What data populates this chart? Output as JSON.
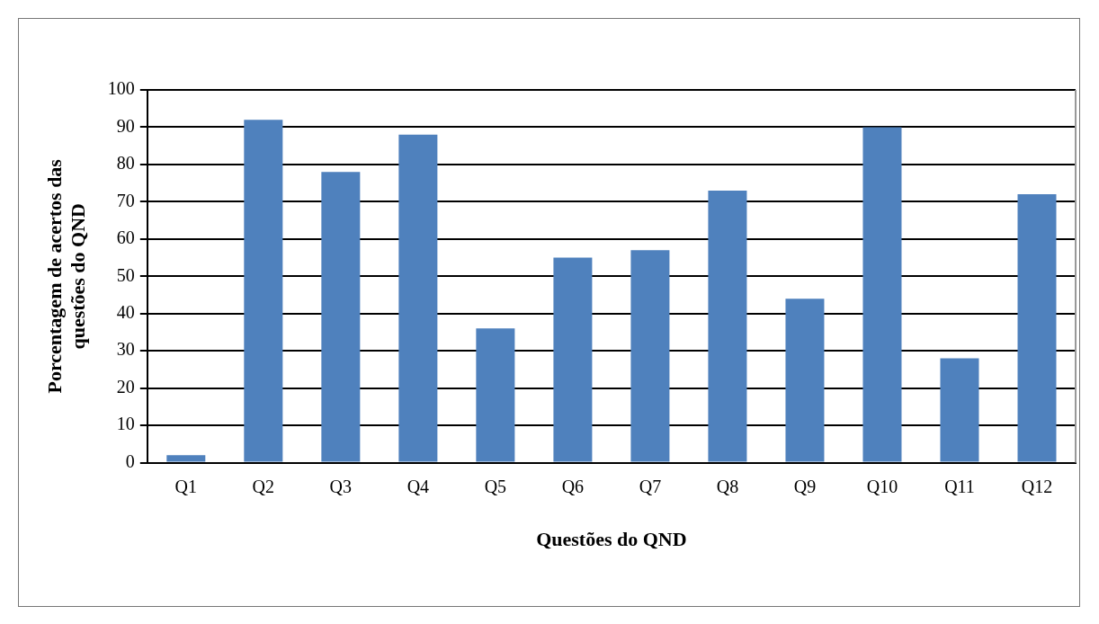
{
  "chart_data": {
    "type": "bar",
    "xlabel": "Questões do QND",
    "ylabel": "Porcentagem de acertos das questões do QND",
    "categories": [
      "Q1",
      "Q2",
      "Q3",
      "Q4",
      "Q5",
      "Q6",
      "Q7",
      "Q8",
      "Q9",
      "Q10",
      "Q11",
      "Q12"
    ],
    "values": [
      2,
      92,
      78,
      88,
      36,
      55,
      57,
      73,
      44,
      90,
      28,
      72
    ],
    "color": "#4f81bd",
    "ylim": [
      0,
      100
    ],
    "yticks": [
      0,
      10,
      20,
      30,
      40,
      50,
      60,
      70,
      80,
      90,
      100
    ],
    "grid": "y",
    "legend": false
  }
}
